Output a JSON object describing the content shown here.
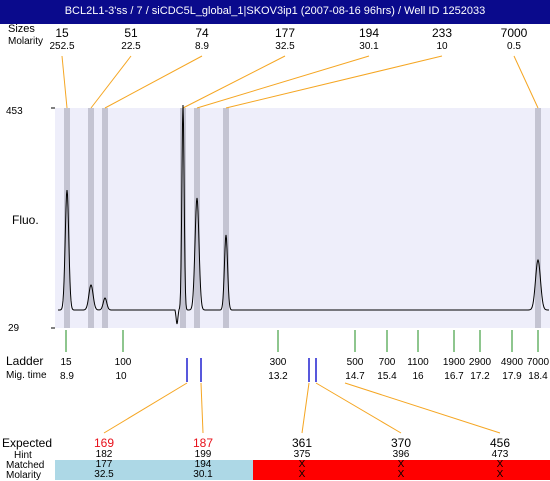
{
  "window": {
    "title": "BCL2L1-3'ss / 7 / siCDC5L_global_1|SKOV3ip1 (2007-08-16 96hrs) / Well ID 1252033"
  },
  "header": {
    "sizes_label": "Sizes",
    "molarity_label": "Molarity",
    "peaks": [
      {
        "size": "15",
        "molarity": "252.5"
      },
      {
        "size": "51",
        "molarity": "22.5"
      },
      {
        "size": "74",
        "molarity": "8.9"
      },
      {
        "size": "177",
        "molarity": "32.5"
      },
      {
        "size": "194",
        "molarity": "30.1"
      },
      {
        "size": "233",
        "molarity": "10"
      },
      {
        "size": "7000",
        "molarity": "0.5"
      }
    ]
  },
  "plot": {
    "y_max_label": "453",
    "y_min_label": "29",
    "fluo_label": "Fluo.",
    "bg_color": "#eeeefa",
    "band_color": "#c4c4d2"
  },
  "ladder": {
    "label": "Ladder",
    "mig_time_label": "Mig. time",
    "marks": [
      {
        "size": "15",
        "time": "8.9"
      },
      {
        "size": "100",
        "time": "10"
      },
      {
        "size": "300",
        "time": "13.2"
      },
      {
        "size": "500",
        "time": "14.7"
      },
      {
        "size": "700",
        "time": "15.4"
      },
      {
        "size": "1100",
        "time": "16"
      },
      {
        "size": "1900",
        "time": "16.7"
      },
      {
        "size": "2900",
        "time": "17.2"
      },
      {
        "size": "4900",
        "time": "17.9"
      },
      {
        "size": "7000",
        "time": "18.4"
      }
    ]
  },
  "table": {
    "expected_label": "Expected",
    "hint_label": "Hint",
    "matched_label": "Matched",
    "molarity_label": "Molarity",
    "matched_color": "#add8e6",
    "unmatched_color": "#ff0000",
    "columns": [
      {
        "expected": "169",
        "hint": "182",
        "matched": "177",
        "molarity": "32.5",
        "status": "matched"
      },
      {
        "expected": "187",
        "hint": "199",
        "matched": "194",
        "molarity": "30.1",
        "status": "matched"
      },
      {
        "expected": "361",
        "hint": "375",
        "matched": "X",
        "molarity": "X",
        "status": "unmatched"
      },
      {
        "expected": "370",
        "hint": "396",
        "matched": "X",
        "molarity": "X",
        "status": "unmatched"
      },
      {
        "expected": "456",
        "hint": "473",
        "matched": "X",
        "molarity": "X",
        "status": "unmatched"
      }
    ]
  }
}
